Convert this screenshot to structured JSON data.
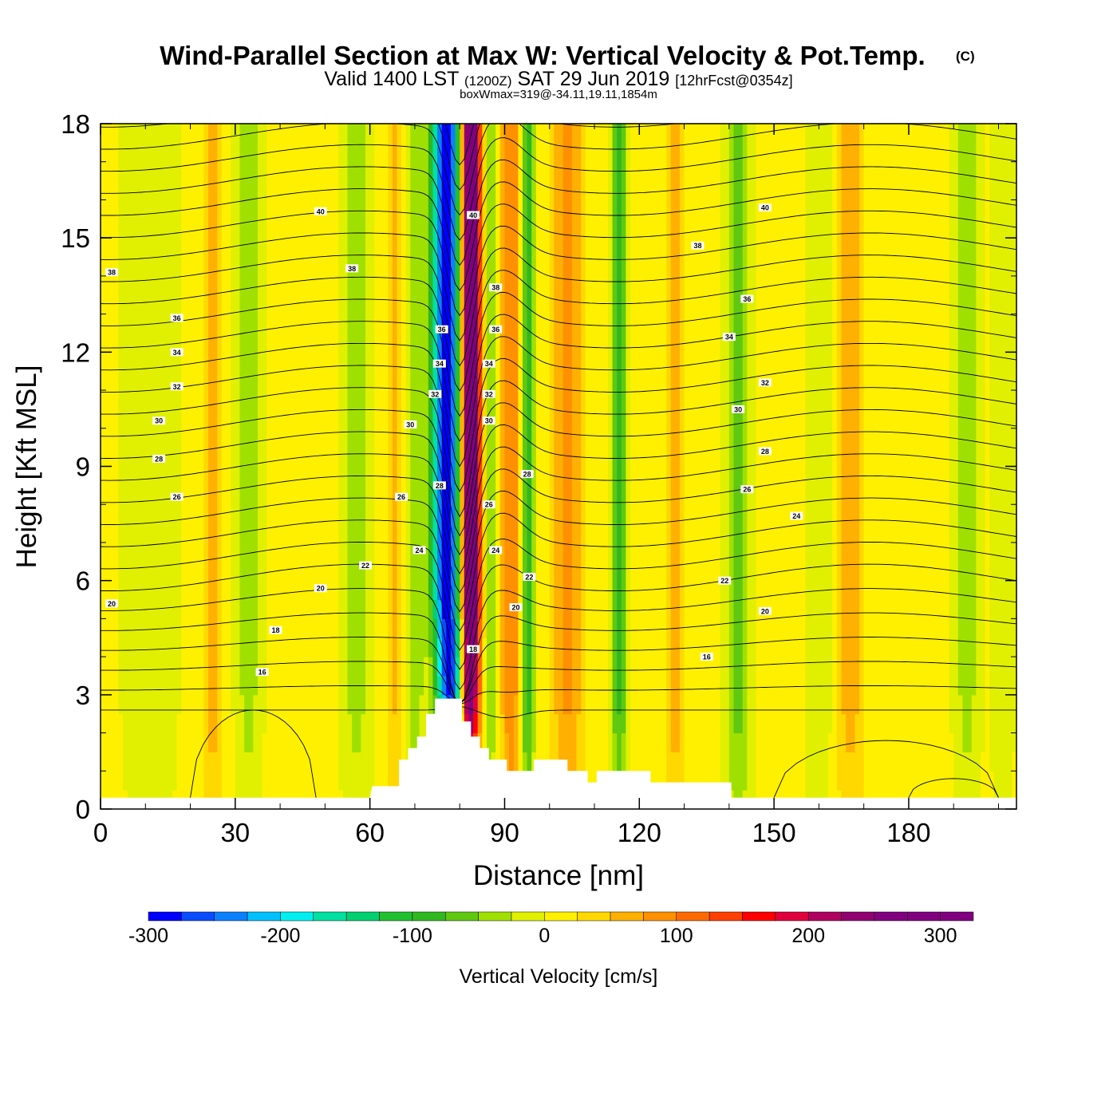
{
  "titles": {
    "main": "Wind-Parallel Section at Max W: Vertical Velocity & Pot.Temp.",
    "copyright": "(C)",
    "valid_prefix": "Valid 1400 LST",
    "valid_zulu": "(1200Z)",
    "valid_date": "SAT 29 Jun 2019",
    "forecast": "[12hrFcst@0354z]",
    "boxmax": "boxWmax=319@-34.11,19.11,1854m"
  },
  "chart_data": {
    "type": "heatmap",
    "xlabel": "Distance [nm]",
    "ylabel": "Height [Kft MSL]",
    "xlim": [
      0,
      204
    ],
    "ylim": [
      0,
      18
    ],
    "xticks": [
      0,
      30,
      60,
      90,
      120,
      150,
      180
    ],
    "yticks": [
      0,
      3,
      6,
      9,
      12,
      15,
      18
    ],
    "colorbar": {
      "label": "Vertical Velocity [cm/s]",
      "range": [
        -300,
        325
      ],
      "step": 25,
      "ticks": [
        -300,
        -200,
        -100,
        0,
        100,
        200,
        300
      ],
      "colors": [
        "#0000ff",
        "#0a4cff",
        "#0a80ff",
        "#00c0ff",
        "#00f0f0",
        "#00e0a0",
        "#00d070",
        "#20c030",
        "#30b820",
        "#60c810",
        "#a0e000",
        "#e0f000",
        "#fff000",
        "#ffd800",
        "#ffb000",
        "#ff9000",
        "#ff6a00",
        "#ff4000",
        "#ff0000",
        "#e0003c",
        "#b00060",
        "#900070",
        "#800080"
      ]
    },
    "wfield": {
      "description_units": "cm/s",
      "background": 10,
      "features": [
        {
          "x": 77,
          "w": 3.2,
          "amp": -310
        },
        {
          "x": 82.5,
          "w": 2.2,
          "amp": 320
        },
        {
          "x": 87,
          "w": 1.5,
          "amp": -60
        },
        {
          "x": 91.5,
          "w": 2.5,
          "amp": 90
        },
        {
          "x": 95,
          "w": 1.6,
          "amp": -110
        },
        {
          "x": 104,
          "w": 3.5,
          "amp": 70
        },
        {
          "x": 115.5,
          "w": 2.0,
          "amp": -90
        },
        {
          "x": 25,
          "w": 2.0,
          "amp": 55
        },
        {
          "x": 11,
          "w": 6.0,
          "amp": -35
        },
        {
          "x": 33,
          "w": 3.0,
          "amp": -45
        },
        {
          "x": 57,
          "w": 3.5,
          "amp": -45
        },
        {
          "x": 66,
          "w": 2.0,
          "amp": 45
        },
        {
          "x": 70,
          "w": 2.0,
          "amp": -55
        },
        {
          "x": 128,
          "w": 2.0,
          "amp": 55
        },
        {
          "x": 142,
          "w": 3.0,
          "amp": -70
        },
        {
          "x": 167,
          "w": 3.0,
          "amp": 55
        },
        {
          "x": 160,
          "w": 3.0,
          "amp": -35
        },
        {
          "x": 193,
          "w": 3.0,
          "amp": -45
        },
        {
          "x": 201,
          "w": 2.5,
          "amp": -35
        }
      ]
    },
    "theta_contours": {
      "units": "C",
      "levels": [
        14,
        15,
        16,
        17,
        18,
        19,
        20,
        21,
        22,
        23,
        24,
        25,
        26,
        27,
        28,
        29,
        30,
        31,
        32,
        33,
        34,
        35,
        36,
        37,
        38,
        39,
        40,
        41,
        42
      ],
      "labels": [
        {
          "x": 2.5,
          "y": 14.1,
          "text": "38"
        },
        {
          "x": 17,
          "y": 12.9,
          "text": "36"
        },
        {
          "x": 17,
          "y": 12.0,
          "text": "34"
        },
        {
          "x": 17,
          "y": 11.1,
          "text": "32"
        },
        {
          "x": 13,
          "y": 10.2,
          "text": "30"
        },
        {
          "x": 13,
          "y": 9.2,
          "text": "28"
        },
        {
          "x": 17,
          "y": 8.2,
          "text": "26"
        },
        {
          "x": 2.5,
          "y": 5.4,
          "text": "20"
        },
        {
          "x": 39,
          "y": 4.7,
          "text": "18"
        },
        {
          "x": 36,
          "y": 3.6,
          "text": "16"
        },
        {
          "x": 49,
          "y": 15.7,
          "text": "40"
        },
        {
          "x": 56,
          "y": 14.2,
          "text": "38"
        },
        {
          "x": 69,
          "y": 10.1,
          "text": "30"
        },
        {
          "x": 67,
          "y": 8.2,
          "text": "26"
        },
        {
          "x": 71,
          "y": 6.8,
          "text": "24"
        },
        {
          "x": 59,
          "y": 6.4,
          "text": "22"
        },
        {
          "x": 49,
          "y": 5.8,
          "text": "20"
        },
        {
          "x": 76,
          "y": 12.6,
          "text": "36"
        },
        {
          "x": 75.5,
          "y": 11.7,
          "text": "34"
        },
        {
          "x": 74.5,
          "y": 10.9,
          "text": "32"
        },
        {
          "x": 75.5,
          "y": 8.5,
          "text": "28"
        },
        {
          "x": 83,
          "y": 15.6,
          "text": "40"
        },
        {
          "x": 88,
          "y": 13.7,
          "text": "38"
        },
        {
          "x": 88,
          "y": 12.6,
          "text": "36"
        },
        {
          "x": 86.5,
          "y": 11.7,
          "text": "34"
        },
        {
          "x": 86.5,
          "y": 10.9,
          "text": "32"
        },
        {
          "x": 86.5,
          "y": 10.2,
          "text": "30"
        },
        {
          "x": 86.5,
          "y": 8.0,
          "text": "26"
        },
        {
          "x": 88,
          "y": 6.8,
          "text": "24"
        },
        {
          "x": 95,
          "y": 8.8,
          "text": "28"
        },
        {
          "x": 95.5,
          "y": 6.1,
          "text": "22"
        },
        {
          "x": 92.5,
          "y": 5.3,
          "text": "20"
        },
        {
          "x": 83,
          "y": 4.2,
          "text": "18"
        },
        {
          "x": 148,
          "y": 15.8,
          "text": "40"
        },
        {
          "x": 133,
          "y": 14.8,
          "text": "38"
        },
        {
          "x": 144,
          "y": 13.4,
          "text": "36"
        },
        {
          "x": 140,
          "y": 12.4,
          "text": "34"
        },
        {
          "x": 148,
          "y": 11.2,
          "text": "32"
        },
        {
          "x": 142,
          "y": 10.5,
          "text": "30"
        },
        {
          "x": 148,
          "y": 9.4,
          "text": "28"
        },
        {
          "x": 144,
          "y": 8.4,
          "text": "26"
        },
        {
          "x": 155,
          "y": 7.7,
          "text": "24"
        },
        {
          "x": 139,
          "y": 6.0,
          "text": "22"
        },
        {
          "x": 148,
          "y": 5.2,
          "text": "20"
        },
        {
          "x": 135,
          "y": 4.0,
          "text": "16"
        }
      ]
    },
    "terrain": [
      [
        0,
        0.3
      ],
      [
        60,
        0.3
      ],
      [
        60.5,
        0.6
      ],
      [
        66.5,
        0.6
      ],
      [
        66.5,
        1.3
      ],
      [
        68.5,
        1.3
      ],
      [
        68.5,
        1.6
      ],
      [
        70.5,
        1.6
      ],
      [
        70.5,
        1.9
      ],
      [
        72.5,
        1.9
      ],
      [
        72.5,
        2.5
      ],
      [
        74.5,
        2.5
      ],
      [
        74.5,
        2.9
      ],
      [
        80.5,
        2.9
      ],
      [
        80.5,
        2.3
      ],
      [
        82.5,
        2.3
      ],
      [
        82.5,
        1.9
      ],
      [
        84.5,
        1.9
      ],
      [
        84.5,
        1.6
      ],
      [
        86.5,
        1.6
      ],
      [
        86.5,
        1.3
      ],
      [
        90.5,
        1.3
      ],
      [
        90.5,
        1.0
      ],
      [
        96.5,
        1.0
      ],
      [
        96.5,
        1.3
      ],
      [
        104,
        1.3
      ],
      [
        104,
        1.0
      ],
      [
        108.5,
        1.0
      ],
      [
        108.5,
        0.7
      ],
      [
        110.5,
        0.7
      ],
      [
        110.5,
        1.0
      ],
      [
        122.5,
        1.0
      ],
      [
        122.5,
        0.7
      ],
      [
        140.5,
        0.7
      ],
      [
        140.5,
        0.3
      ],
      [
        204,
        0.3
      ]
    ]
  }
}
